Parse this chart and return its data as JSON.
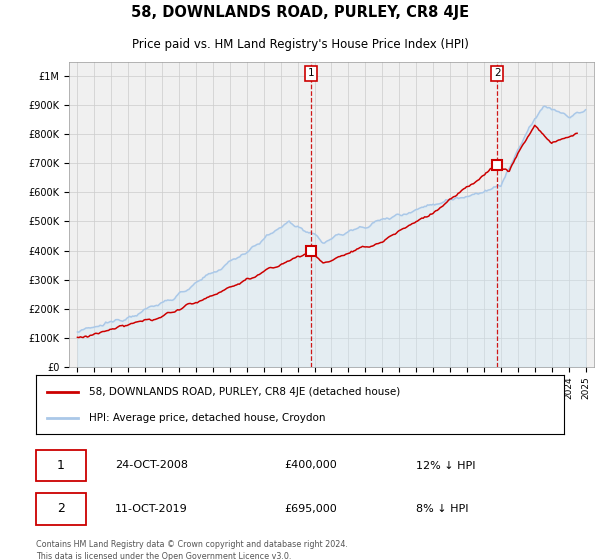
{
  "title": "58, DOWNLANDS ROAD, PURLEY, CR8 4JE",
  "subtitle": "Price paid vs. HM Land Registry's House Price Index (HPI)",
  "legend_line1": "58, DOWNLANDS ROAD, PURLEY, CR8 4JE (detached house)",
  "legend_line2": "HPI: Average price, detached house, Croydon",
  "annotation1_date": "24-OCT-2008",
  "annotation1_price": "£400,000",
  "annotation1_hpi": "12% ↓ HPI",
  "annotation2_date": "11-OCT-2019",
  "annotation2_price": "£695,000",
  "annotation2_hpi": "8% ↓ HPI",
  "footer": "Contains HM Land Registry data © Crown copyright and database right 2024.\nThis data is licensed under the Open Government Licence v3.0.",
  "point1_x": 2008.8,
  "point1_y": 400000,
  "point2_x": 2019.78,
  "point2_y": 695000,
  "ylim": [
    0,
    1050000
  ],
  "xlim": [
    1994.5,
    2025.5
  ],
  "red_color": "#cc0000",
  "blue_color": "#aac8e8",
  "blue_fill_color": "#d0e8f8",
  "grid_color": "#cccccc",
  "bg_color": "#ffffff",
  "plot_bg_color": "#f0f0f0"
}
